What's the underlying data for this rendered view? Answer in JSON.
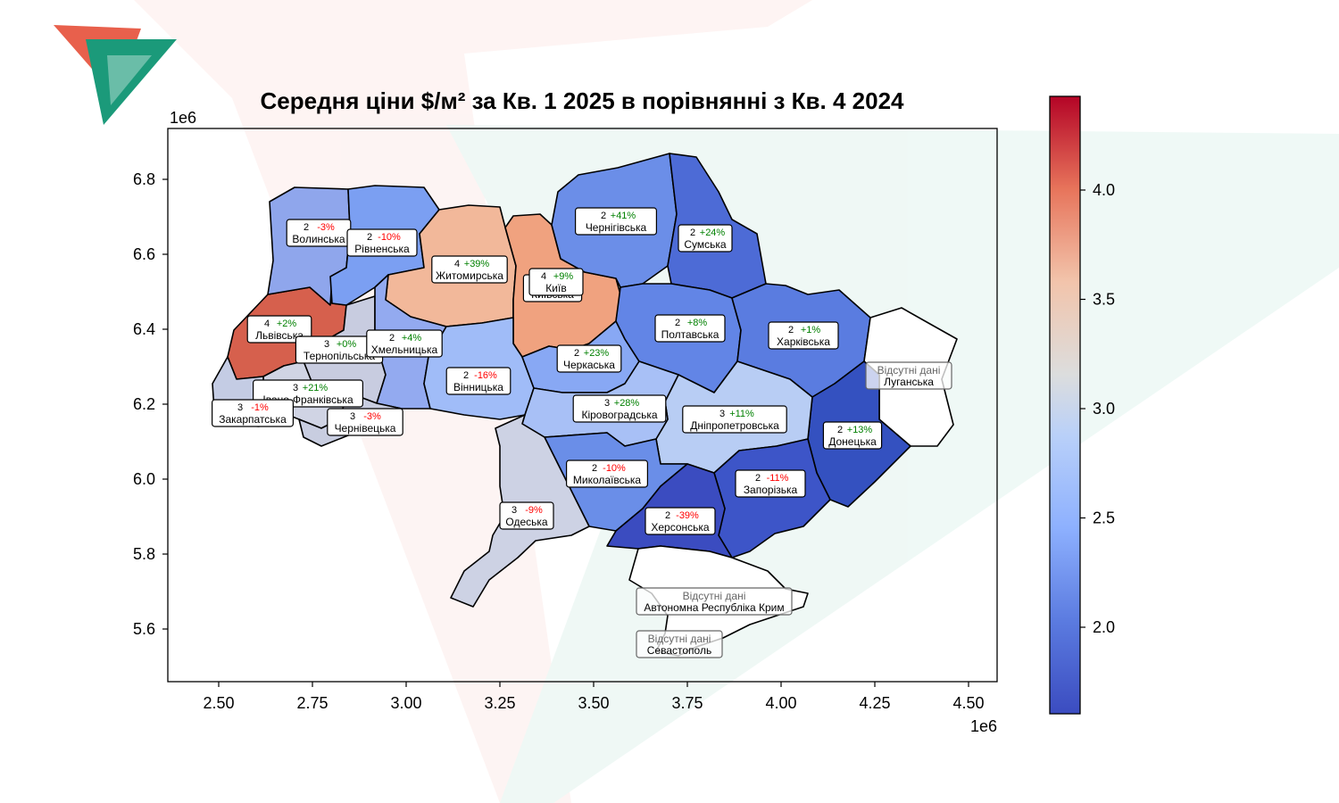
{
  "title": "Середня ціни $/м² за Кв. 1  2025  в порівнянні з  Кв. 4  2024",
  "x_axis": {
    "ticks": [
      "2.50",
      "2.75",
      "3.00",
      "3.25",
      "3.50",
      "3.75",
      "4.00",
      "4.25",
      "4.50"
    ],
    "offset": "1e6"
  },
  "y_axis": {
    "ticks": [
      "5.6",
      "5.8",
      "6.0",
      "6.2",
      "6.4",
      "6.6",
      "6.8"
    ],
    "offset": "1e6"
  },
  "colorbar": {
    "ticks": [
      "2.0",
      "2.5",
      "3.0",
      "3.5",
      "4.0"
    ],
    "cmap": "coolwarm"
  },
  "missing_label": "Відсутні дані",
  "colors": {
    "positive": "#008000",
    "negative": "#ff0000",
    "logo_red": "#e8604c",
    "logo_green": "#1b9a7a"
  },
  "regions": [
    {
      "name": "Волинська",
      "value": "2",
      "change": "-3%",
      "color": "#8fa6ec"
    },
    {
      "name": "Рівненська",
      "value": "2",
      "change": "-10%",
      "color": "#7b9ff2"
    },
    {
      "name": "Житомирська",
      "value": "4",
      "change": "+39%",
      "color": "#f2b89a"
    },
    {
      "name": "Київська",
      "value": "4",
      "change": "+9%",
      "color": "#f0a27f"
    },
    {
      "name": "Київ",
      "value": "4",
      "change": "+9%",
      "color": "#f0a27f"
    },
    {
      "name": "Чернігівська",
      "value": "2",
      "change": "+41%",
      "color": "#6b8ee8"
    },
    {
      "name": "Сумська",
      "value": "2",
      "change": "+24%",
      "color": "#4d6bd6"
    },
    {
      "name": "Львівська",
      "value": "4",
      "change": "+2%",
      "color": "#d6604d"
    },
    {
      "name": "Тернопільська",
      "value": "3",
      "change": "+0%",
      "color": "#c8cce0"
    },
    {
      "name": "Хмельницька",
      "value": "2",
      "change": "+4%",
      "color": "#93aaf0"
    },
    {
      "name": "Полтавська",
      "value": "2",
      "change": "+8%",
      "color": "#6285e6"
    },
    {
      "name": "Харківська",
      "value": "2",
      "change": "+1%",
      "color": "#5a7ce0"
    },
    {
      "name": "Черкаська",
      "value": "2",
      "change": "+23%",
      "color": "#88a8f4"
    },
    {
      "name": "Вінницька",
      "value": "2",
      "change": "-16%",
      "color": "#a0bcf8"
    },
    {
      "name": "Івано-Франківська",
      "value": "3",
      "change": "+21%",
      "color": "#d0d4e4"
    },
    {
      "name": "Закарпатська",
      "value": "3",
      "change": "-1%",
      "color": "#c4cce4"
    },
    {
      "name": "Чернівецька",
      "value": "3",
      "change": "-3%",
      "color": "#c8cde0"
    },
    {
      "name": "Кіровоградська",
      "value": "3",
      "change": "+28%",
      "color": "#a8c0f6"
    },
    {
      "name": "Дніпропетровська",
      "value": "3",
      "change": "+11%",
      "color": "#b8cdf4"
    },
    {
      "name": "Донецька",
      "value": "2",
      "change": "+13%",
      "color": "#3451c0"
    },
    {
      "name": "Миколаївська",
      "value": "2",
      "change": "-10%",
      "color": "#6a8ee8"
    },
    {
      "name": "Одеська",
      "value": "3",
      "change": "-9%",
      "color": "#cdd2e4"
    },
    {
      "name": "Херсонська",
      "value": "2",
      "change": "-39%",
      "color": "#3b4cc0"
    },
    {
      "name": "Запорізька",
      "value": "2",
      "change": "-11%",
      "color": "#3d55c8"
    },
    {
      "name": "Луганська",
      "missing": true
    },
    {
      "name": "Автономна Республіка Крим",
      "missing": true
    },
    {
      "name": "Севастополь",
      "missing": true
    }
  ]
}
